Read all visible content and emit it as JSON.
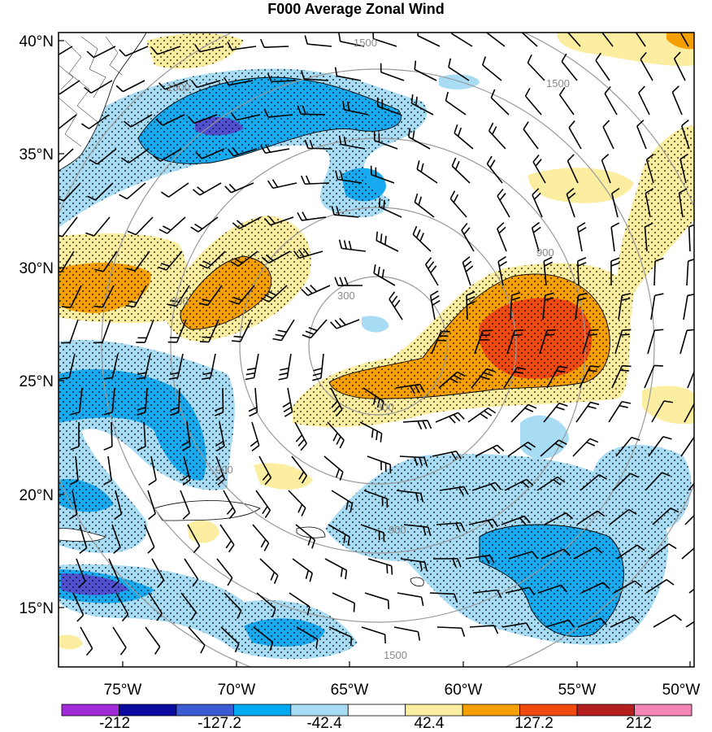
{
  "title": "F000 Average Zonal Wind",
  "lat_labels": [
    "40°N",
    "35°N",
    "30°N",
    "25°N",
    "20°N",
    "15°N"
  ],
  "lon_labels": [
    "75°W",
    "70°W",
    "65°W",
    "60°W",
    "55°W",
    "50°W"
  ],
  "range_ring_labels": [
    "300",
    "300",
    "900",
    "900",
    "900",
    "900",
    "1500",
    "1500",
    "1500",
    "1500"
  ],
  "colorbar": {
    "labels": [
      "-212",
      "-127.2",
      "-42.4",
      "42.4",
      "127.2",
      "212"
    ],
    "colors": [
      "#a02ad8",
      "#0a0aa0",
      "#3c5ad2",
      "#00aaf0",
      "#a8dcf5",
      "#ffffff",
      "#fbeea0",
      "#f5a000",
      "#f04a10",
      "#b41e1e",
      "#f585b4"
    ]
  },
  "fill_colors": {
    "light_blue": "#a8dcf5",
    "blue": "#18aaf0",
    "indigo": "#5050d0",
    "light_yellow": "#fbeea0",
    "orange": "#f5a000",
    "red_orange": "#f04a10"
  }
}
